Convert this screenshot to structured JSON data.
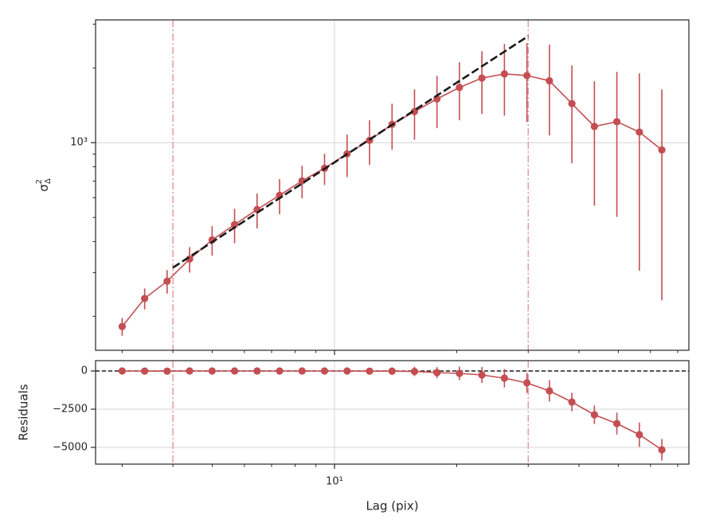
{
  "chart_data": [
    {
      "type": "line",
      "y_label": {
        "symbol": "σ",
        "sub": "Δ",
        "sup": "2"
      },
      "xscale": "log",
      "yscale": "log",
      "xlim": [
        2.58,
        74.6
      ],
      "ylim": [
        146,
        3120
      ],
      "xticks": [
        {
          "value": 10,
          "label": "10¹"
        }
      ],
      "xminor": [
        3,
        4,
        5,
        6,
        7,
        8,
        9,
        20,
        30,
        40,
        50,
        60,
        70
      ],
      "yticks": [
        {
          "value": 1000,
          "label": "10³"
        }
      ],
      "yminor": [
        200,
        300,
        400,
        500,
        600,
        700,
        800,
        900,
        2000,
        3000
      ],
      "grid": true,
      "x": [
        3,
        3.408,
        3.871,
        4.398,
        4.996,
        5.675,
        6.447,
        7.324,
        8.32,
        9.451,
        10.74,
        12.2,
        13.86,
        15.74,
        17.88,
        20.31,
        23.07,
        26.21,
        29.78,
        33.83,
        38.43,
        43.66,
        49.59,
        56.34,
        64.0
      ],
      "series": [
        {
          "color": "#c44e52",
          "marker": true,
          "values": [
            182,
            236,
            277,
            340,
            406,
            468,
            538,
            614,
            702,
            789,
            902,
            1022,
            1186,
            1334,
            1500,
            1668,
            1820,
            1891,
            1863,
            1774,
            1436,
            1162,
            1215,
            1103,
            935
          ],
          "errors": [
            15,
            23,
            30,
            40,
            55,
            74,
            86,
            99,
            105,
            113,
            175,
            208,
            249,
            306,
            357,
            438,
            516,
            606,
            652,
            705,
            610,
            604,
            712,
            798,
            703
          ]
        },
        {
          "color": "#1a1a1a",
          "style": "dashed",
          "x": [
            4,
            30
          ],
          "values": [
            314,
            2685
          ]
        }
      ],
      "vlines": [
        4,
        30
      ],
      "vline_color": "#e79a9c"
    },
    {
      "type": "line",
      "x_label": "Lag (pix)",
      "y_label": "Residuals",
      "xscale": "log",
      "yscale": "linear",
      "xlim": [
        2.58,
        74.6
      ],
      "ylim": [
        -6094,
        677
      ],
      "xticks": [
        {
          "value": 10,
          "label": "10¹"
        }
      ],
      "xminor": [
        3,
        4,
        5,
        6,
        7,
        8,
        9,
        20,
        30,
        40,
        50,
        60,
        70
      ],
      "yticks": [
        0,
        {
          "value": -2500,
          "label": "−2500"
        },
        {
          "value": -5000,
          "label": "−5000"
        }
      ],
      "grid": true,
      "x": [
        3,
        3.408,
        3.871,
        4.398,
        4.996,
        5.675,
        6.447,
        7.324,
        8.32,
        9.451,
        10.74,
        12.2,
        13.86,
        15.74,
        17.88,
        20.31,
        23.07,
        26.21,
        29.78,
        33.83,
        38.43,
        43.66,
        49.59,
        56.34,
        64.0
      ],
      "series": [
        {
          "color": "#c44e52",
          "marker": true,
          "values": [
            0,
            -5,
            -10,
            0,
            0,
            0,
            0,
            0,
            0,
            0,
            0,
            -10,
            -10,
            -30,
            -104,
            -156,
            -260,
            -469,
            -781,
            -1302,
            -2031,
            -2865,
            -3437,
            -4167,
            -5156
          ],
          "errors": [
            15,
            23,
            30,
            40,
            55,
            74,
            86,
            99,
            105,
            113,
            175,
            208,
            249,
            306,
            357,
            438,
            516,
            606,
            652,
            705,
            610,
            604,
            712,
            798,
            703
          ]
        }
      ],
      "hlines": [
        0
      ],
      "hline_color": "#1a1a1a",
      "vlines": [
        4,
        30
      ],
      "vline_color": "#e79a9c"
    }
  ]
}
